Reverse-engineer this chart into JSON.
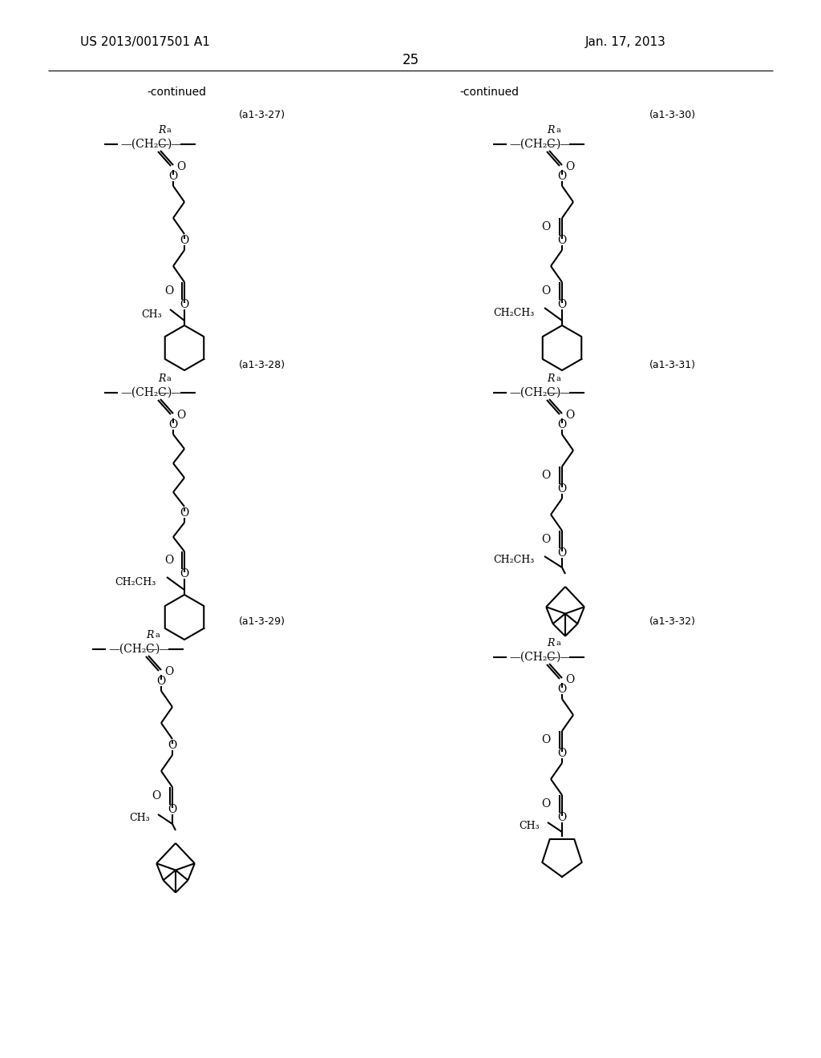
{
  "bg_color": "#ffffff",
  "patent_number": "US 2013/0017501 A1",
  "date": "Jan. 17, 2013",
  "page_number": "25",
  "continued_left": "-continued",
  "continued_right": "-continued",
  "label_27": "(a1-3-27)",
  "label_28": "(a1-3-28)",
  "label_29": "(a1-3-29)",
  "label_30": "(a1-3-30)",
  "label_31": "(a1-3-31)",
  "label_32": "(a1-3-32)"
}
